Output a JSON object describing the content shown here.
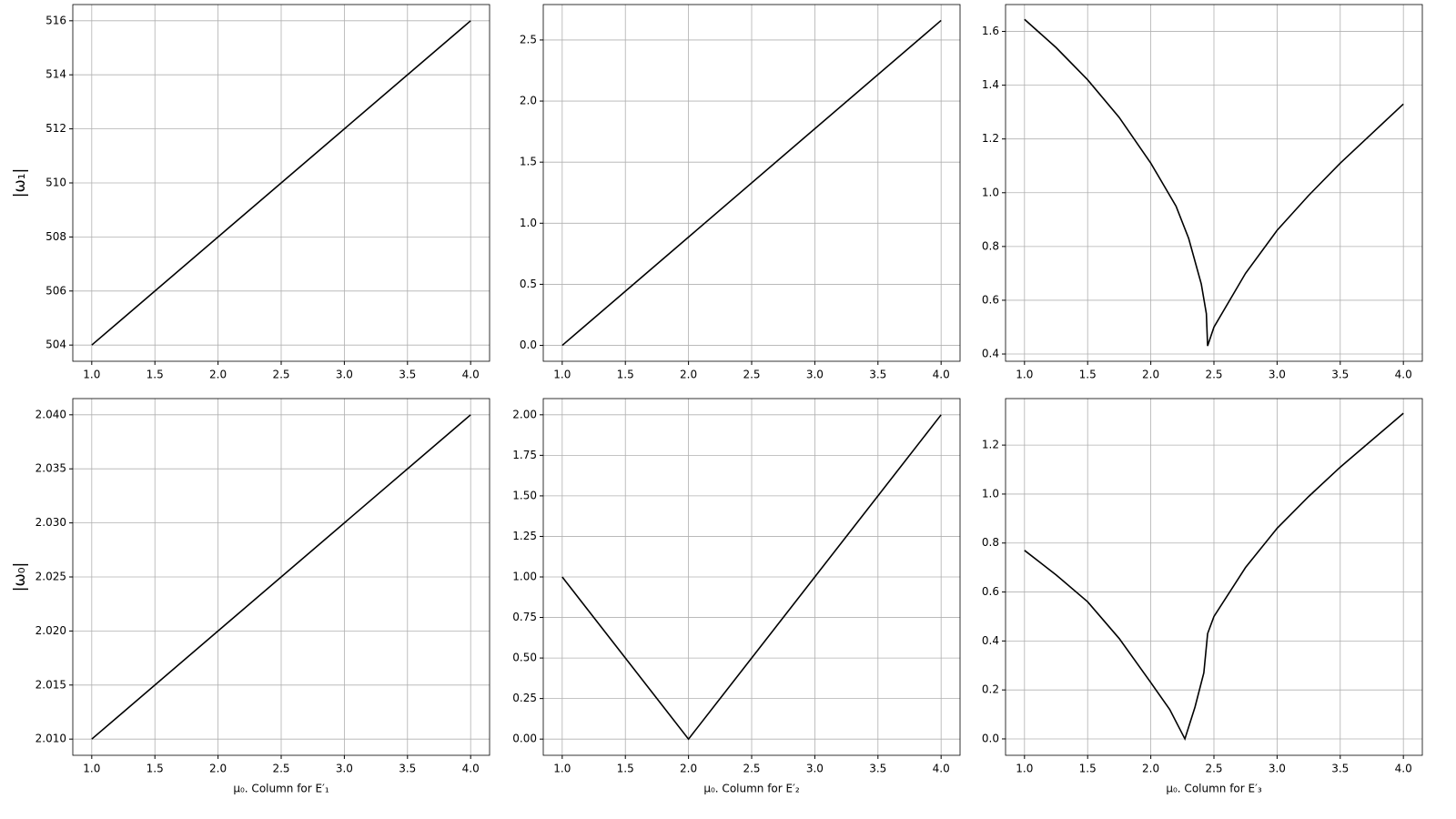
{
  "chart_data": [
    {
      "type": "line",
      "ylabel": "|ω₁|",
      "color": "#000000",
      "grid": true,
      "x": [
        1,
        4
      ],
      "values": [
        504,
        516
      ],
      "xlim": [
        0.85,
        4.15
      ],
      "ylim": [
        503.4,
        516.6
      ],
      "xticks": [
        {
          "value": 1,
          "label": "1.0"
        },
        1.5,
        {
          "value": 2,
          "label": "2.0"
        },
        2.5,
        {
          "value": 3,
          "label": "3.0"
        },
        3.5,
        {
          "value": 4,
          "label": "4.0"
        }
      ],
      "yticks": [
        504,
        506,
        508,
        510,
        512,
        514,
        516
      ]
    },
    {
      "type": "line",
      "color": "#000000",
      "grid": true,
      "x": [
        1,
        4
      ],
      "values": [
        0,
        2.66
      ],
      "xlim": [
        0.85,
        4.15
      ],
      "ylim": [
        -0.13,
        2.79
      ],
      "xticks": [
        {
          "value": 1,
          "label": "1.0"
        },
        1.5,
        {
          "value": 2,
          "label": "2.0"
        },
        2.5,
        {
          "value": 3,
          "label": "3.0"
        },
        3.5,
        {
          "value": 4,
          "label": "4.0"
        }
      ],
      "yticks": [
        {
          "value": 0,
          "label": "0.0"
        },
        0.5,
        {
          "value": 1,
          "label": "1.0"
        },
        1.5,
        {
          "value": 2,
          "label": "2.0"
        },
        2.5
      ]
    },
    {
      "type": "line",
      "color": "#000000",
      "grid": true,
      "x": [
        1,
        1.25,
        1.5,
        1.75,
        2.0,
        2.2,
        2.3,
        2.4,
        2.44,
        2.45,
        2.5,
        2.75,
        3.0,
        3.25,
        3.5,
        3.75,
        4.0
      ],
      "values": [
        1.645,
        1.54,
        1.42,
        1.28,
        1.11,
        0.95,
        0.83,
        0.66,
        0.55,
        0.43,
        0.5,
        0.7,
        0.86,
        0.99,
        1.11,
        1.22,
        1.33
      ],
      "xlim": [
        0.85,
        4.15
      ],
      "ylim": [
        0.373,
        1.7
      ],
      "xticks": [
        {
          "value": 1,
          "label": "1.0"
        },
        1.5,
        {
          "value": 2,
          "label": "2.0"
        },
        2.5,
        {
          "value": 3,
          "label": "3.0"
        },
        3.5,
        {
          "value": 4,
          "label": "4.0"
        }
      ],
      "yticks": [
        0.4,
        0.6,
        0.8,
        {
          "value": 1,
          "label": "1.0"
        },
        1.2,
        1.4,
        1.6
      ]
    },
    {
      "type": "line",
      "ylabel": "|ω₀|",
      "xlabel": "μ₀.  Column for E′₁",
      "color": "#000000",
      "grid": true,
      "x": [
        1,
        4
      ],
      "values": [
        2.01,
        2.04
      ],
      "xlim": [
        0.85,
        4.15
      ],
      "ylim": [
        2.0085,
        2.0415
      ],
      "xticks": [
        {
          "value": 1,
          "label": "1.0"
        },
        1.5,
        {
          "value": 2,
          "label": "2.0"
        },
        2.5,
        {
          "value": 3,
          "label": "3.0"
        },
        3.5,
        {
          "value": 4,
          "label": "4.0"
        }
      ],
      "yticks": [
        {
          "value": 2.01,
          "label": "2.010"
        },
        2.015,
        {
          "value": 2.02,
          "label": "2.020"
        },
        2.025,
        {
          "value": 2.03,
          "label": "2.030"
        },
        2.035,
        {
          "value": 2.04,
          "label": "2.040"
        }
      ]
    },
    {
      "type": "line",
      "xlabel": "μ₀.  Column for E′₂",
      "color": "#000000",
      "grid": true,
      "x": [
        1,
        2,
        4
      ],
      "values": [
        1,
        0,
        2
      ],
      "xlim": [
        0.85,
        4.15
      ],
      "ylim": [
        -0.1,
        2.1
      ],
      "xticks": [
        {
          "value": 1,
          "label": "1.0"
        },
        1.5,
        {
          "value": 2,
          "label": "2.0"
        },
        2.5,
        {
          "value": 3,
          "label": "3.0"
        },
        3.5,
        {
          "value": 4,
          "label": "4.0"
        }
      ],
      "yticks": [
        {
          "value": 0,
          "label": "0.00"
        },
        0.25,
        {
          "value": 0.5,
          "label": "0.50"
        },
        0.75,
        {
          "value": 1,
          "label": "1.00"
        },
        1.25,
        {
          "value": 1.5,
          "label": "1.50"
        },
        1.75,
        {
          "value": 2,
          "label": "2.00"
        }
      ]
    },
    {
      "type": "line",
      "xlabel": "μ₀.  Column for E′₃",
      "color": "#000000",
      "grid": true,
      "x": [
        1,
        1.25,
        1.5,
        1.75,
        2.0,
        2.15,
        2.27,
        2.35,
        2.42,
        2.45,
        2.5,
        2.75,
        3.0,
        3.25,
        3.5,
        3.75,
        4.0
      ],
      "values": [
        0.77,
        0.67,
        0.56,
        0.41,
        0.23,
        0.12,
        0,
        0.13,
        0.27,
        0.43,
        0.5,
        0.7,
        0.86,
        0.99,
        1.11,
        1.22,
        1.33
      ],
      "xlim": [
        0.85,
        4.15
      ],
      "ylim": [
        -0.067,
        1.39
      ],
      "xticks": [
        {
          "value": 1,
          "label": "1.0"
        },
        1.5,
        {
          "value": 2,
          "label": "2.0"
        },
        2.5,
        {
          "value": 3,
          "label": "3.0"
        },
        3.5,
        {
          "value": 4,
          "label": "4.0"
        }
      ],
      "yticks": [
        {
          "value": 0,
          "label": "0.0"
        },
        0.2,
        0.4,
        0.6,
        0.8,
        {
          "value": 1,
          "label": "1.0"
        },
        1.2
      ]
    }
  ]
}
